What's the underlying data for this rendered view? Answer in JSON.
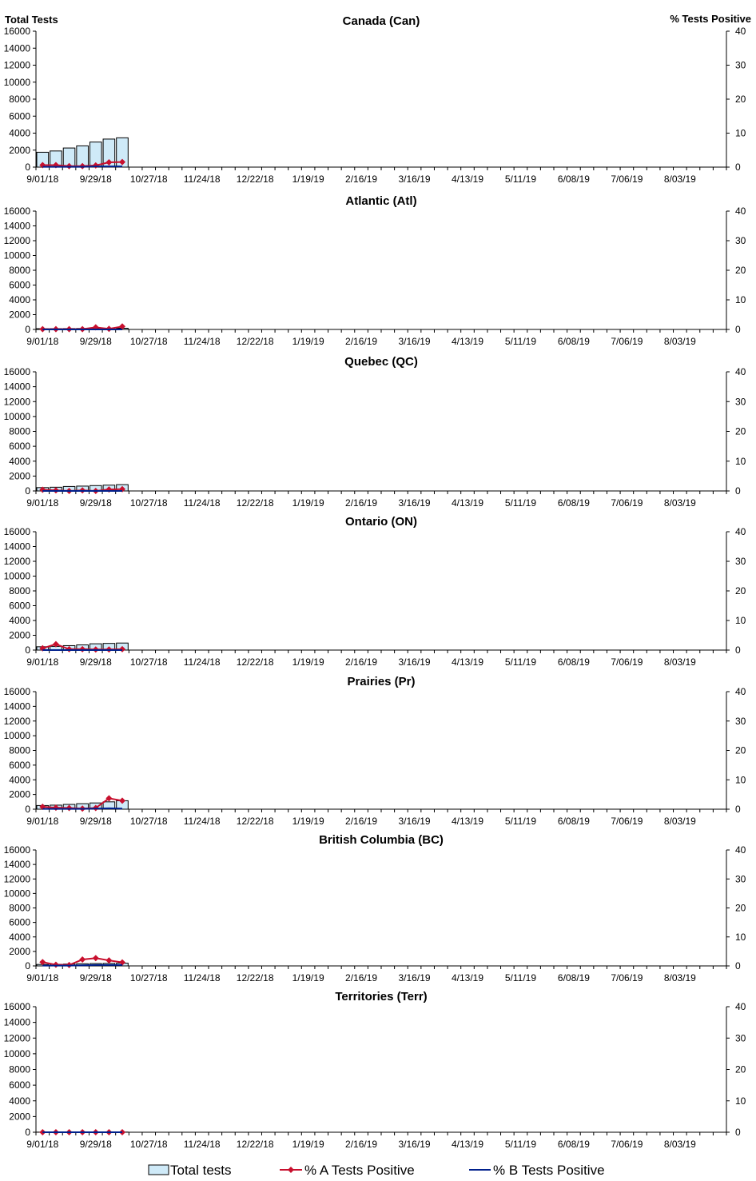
{
  "colors": {
    "bar_fill": "#CFEAF8",
    "bar_stroke": "#000000",
    "series_a": "#C8102E",
    "series_b": "#00208C"
  },
  "legend": {
    "total": "Total tests",
    "a": "% A Tests Positive",
    "b": "% B Tests Positive"
  },
  "chart_data": [
    {
      "type": "bar+line",
      "title": "Canada (Can)",
      "ylabel_left": "Total Tests",
      "ylabel_right": "% Tests Positive",
      "ylim_left": [
        0,
        16000
      ],
      "ylim_right": [
        0,
        40
      ],
      "yticks_left": [
        "0",
        "2000",
        "4000",
        "6000",
        "8000",
        "10000",
        "12000",
        "14000",
        "16000"
      ],
      "yticks_right": [
        "0",
        "10",
        "20",
        "30",
        "40"
      ],
      "xticks": [
        "9/01/18",
        "9/29/18",
        "10/27/18",
        "11/24/18",
        "12/22/18",
        "1/19/19",
        "2/16/19",
        "3/16/19",
        "4/13/19",
        "5/11/19",
        "6/08/19",
        "7/06/19",
        "8/03/19"
      ],
      "weeks_total": 52,
      "series": [
        {
          "name": "Total tests",
          "kind": "bar",
          "values": [
            1750,
            1900,
            2250,
            2500,
            2950,
            3300,
            3450
          ]
        },
        {
          "name": "% A Tests Positive",
          "kind": "line",
          "values": [
            0.6,
            0.6,
            0.3,
            0.3,
            0.5,
            1.4,
            1.5
          ]
        },
        {
          "name": "% B Tests Positive",
          "kind": "line",
          "values": [
            0.1,
            0.1,
            0.1,
            0.1,
            0.2,
            0.2,
            0.2
          ]
        }
      ]
    },
    {
      "type": "bar+line",
      "title": "Atlantic (Atl)",
      "ylim_left": [
        0,
        16000
      ],
      "ylim_right": [
        0,
        40
      ],
      "yticks_left": [
        "0",
        "2000",
        "4000",
        "6000",
        "8000",
        "10000",
        "12000",
        "14000",
        "16000"
      ],
      "yticks_right": [
        "0",
        "10",
        "20",
        "30",
        "40"
      ],
      "xticks": [
        "9/01/18",
        "9/29/18",
        "10/27/18",
        "11/24/18",
        "12/22/18",
        "1/19/19",
        "2/16/19",
        "3/16/19",
        "4/13/19",
        "5/11/19",
        "6/08/19",
        "7/06/19",
        "8/03/19"
      ],
      "weeks_total": 52,
      "series": [
        {
          "name": "Total tests",
          "kind": "bar",
          "values": [
            100,
            110,
            120,
            130,
            140,
            150,
            160
          ]
        },
        {
          "name": "% A Tests Positive",
          "kind": "line",
          "values": [
            0.1,
            0.1,
            0.1,
            0.1,
            0.7,
            0.2,
            1.0
          ]
        },
        {
          "name": "% B Tests Positive",
          "kind": "line",
          "values": [
            0,
            0,
            0,
            0,
            0,
            0,
            0
          ]
        }
      ]
    },
    {
      "type": "bar+line",
      "title": "Quebec (QC)",
      "ylim_left": [
        0,
        16000
      ],
      "ylim_right": [
        0,
        40
      ],
      "yticks_left": [
        "0",
        "2000",
        "4000",
        "6000",
        "8000",
        "10000",
        "12000",
        "14000",
        "16000"
      ],
      "yticks_right": [
        "0",
        "10",
        "20",
        "30",
        "40"
      ],
      "xticks": [
        "9/01/18",
        "9/29/18",
        "10/27/18",
        "11/24/18",
        "12/22/18",
        "1/19/19",
        "2/16/19",
        "3/16/19",
        "4/13/19",
        "5/11/19",
        "6/08/19",
        "7/06/19",
        "8/03/19"
      ],
      "weeks_total": 52,
      "series": [
        {
          "name": "Total tests",
          "kind": "bar",
          "values": [
            450,
            500,
            600,
            650,
            720,
            780,
            850
          ]
        },
        {
          "name": "% A Tests Positive",
          "kind": "line",
          "values": [
            0.4,
            0.2,
            0.0,
            0.2,
            0.0,
            0.5,
            0.6
          ]
        },
        {
          "name": "% B Tests Positive",
          "kind": "line",
          "values": [
            0,
            0,
            0,
            0,
            0,
            0,
            0
          ]
        }
      ]
    },
    {
      "type": "bar+line",
      "title": "Ontario (ON)",
      "ylim_left": [
        0,
        16000
      ],
      "ylim_right": [
        0,
        40
      ],
      "yticks_left": [
        "0",
        "2000",
        "4000",
        "6000",
        "8000",
        "10000",
        "12000",
        "14000",
        "16000"
      ],
      "yticks_right": [
        "0",
        "10",
        "20",
        "30",
        "40"
      ],
      "xticks": [
        "9/01/18",
        "9/29/18",
        "10/27/18",
        "11/24/18",
        "12/22/18",
        "1/19/19",
        "2/16/19",
        "3/16/19",
        "4/13/19",
        "5/11/19",
        "6/08/19",
        "7/06/19",
        "8/03/19"
      ],
      "weeks_total": 52,
      "series": [
        {
          "name": "Total tests",
          "kind": "bar",
          "values": [
            450,
            500,
            600,
            700,
            850,
            900,
            950
          ]
        },
        {
          "name": "% A Tests Positive",
          "kind": "line",
          "values": [
            0.6,
            2.0,
            0.3,
            0.3,
            0.2,
            0.2,
            0.3
          ]
        },
        {
          "name": "% B Tests Positive",
          "kind": "line",
          "values": [
            0,
            0,
            0,
            0,
            0,
            0,
            0
          ]
        }
      ]
    },
    {
      "type": "bar+line",
      "title": "Prairies (Pr)",
      "ylim_left": [
        0,
        16000
      ],
      "ylim_right": [
        0,
        40
      ],
      "yticks_left": [
        "0",
        "2000",
        "4000",
        "6000",
        "8000",
        "10000",
        "12000",
        "14000",
        "16000"
      ],
      "yticks_right": [
        "0",
        "10",
        "20",
        "30",
        "40"
      ],
      "xticks": [
        "9/01/18",
        "9/29/18",
        "10/27/18",
        "11/24/18",
        "12/22/18",
        "1/19/19",
        "2/16/19",
        "3/16/19",
        "4/13/19",
        "5/11/19",
        "6/08/19",
        "7/06/19",
        "8/03/19"
      ],
      "weeks_total": 52,
      "series": [
        {
          "name": "Total tests",
          "kind": "bar",
          "values": [
            500,
            550,
            650,
            750,
            850,
            1000,
            1150
          ]
        },
        {
          "name": "% A Tests Positive",
          "kind": "line",
          "values": [
            0.8,
            0.5,
            0.4,
            0.2,
            0.4,
            3.7,
            2.9
          ]
        },
        {
          "name": "% B Tests Positive",
          "kind": "line",
          "values": [
            0.1,
            0.1,
            0.1,
            0.1,
            0.2,
            0.3,
            0.2
          ]
        }
      ]
    },
    {
      "type": "bar+line",
      "title": "British Columbia (BC)",
      "ylim_left": [
        0,
        16000
      ],
      "ylim_right": [
        0,
        40
      ],
      "yticks_left": [
        "0",
        "2000",
        "4000",
        "6000",
        "8000",
        "10000",
        "12000",
        "14000",
        "16000"
      ],
      "yticks_right": [
        "0",
        "10",
        "20",
        "30",
        "40"
      ],
      "xticks": [
        "9/01/18",
        "9/29/18",
        "10/27/18",
        "11/24/18",
        "12/22/18",
        "1/19/19",
        "2/16/19",
        "3/16/19",
        "4/13/19",
        "5/11/19",
        "6/08/19",
        "7/06/19",
        "8/03/19"
      ],
      "weeks_total": 52,
      "series": [
        {
          "name": "Total tests",
          "kind": "bar",
          "values": [
            200,
            220,
            250,
            300,
            330,
            350,
            380
          ]
        },
        {
          "name": "% A Tests Positive",
          "kind": "line",
          "values": [
            1.3,
            0.4,
            0.3,
            2.2,
            2.7,
            1.9,
            1.2
          ]
        },
        {
          "name": "% B Tests Positive",
          "kind": "line",
          "values": [
            0.1,
            0.1,
            0.1,
            0.2,
            0.3,
            0.3,
            0.3
          ]
        }
      ]
    },
    {
      "type": "bar+line",
      "title": "Territories (Terr)",
      "ylim_left": [
        0,
        16000
      ],
      "ylim_right": [
        0,
        40
      ],
      "yticks_left": [
        "0",
        "2000",
        "4000",
        "6000",
        "8000",
        "10000",
        "12000",
        "14000",
        "16000"
      ],
      "yticks_right": [
        "0",
        "10",
        "20",
        "30",
        "40"
      ],
      "xticks": [
        "9/01/18",
        "9/29/18",
        "10/27/18",
        "11/24/18",
        "12/22/18",
        "1/19/19",
        "2/16/19",
        "3/16/19",
        "4/13/19",
        "5/11/19",
        "6/08/19",
        "7/06/19",
        "8/03/19"
      ],
      "weeks_total": 52,
      "series": [
        {
          "name": "Total tests",
          "kind": "bar",
          "values": [
            10,
            12,
            12,
            14,
            15,
            15,
            16
          ]
        },
        {
          "name": "% A Tests Positive",
          "kind": "line",
          "values": [
            0,
            0,
            0,
            0,
            0,
            0,
            0
          ]
        },
        {
          "name": "% B Tests Positive",
          "kind": "line",
          "values": [
            0,
            0,
            0,
            0,
            0,
            0,
            0
          ]
        }
      ]
    }
  ]
}
